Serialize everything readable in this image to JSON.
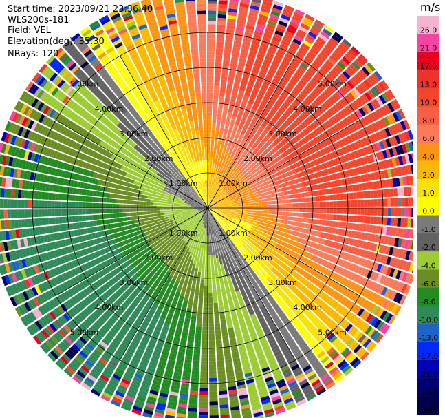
{
  "header": {
    "start_time": "Start time: 2023/09/21 23:36:40",
    "instrument": "WLS200s-181",
    "field": "Field: VEL",
    "elevation": "Elevation(deg): 35.30",
    "nrays": "NRays: 120"
  },
  "colorbar": {
    "unit": "m/s",
    "ticks": [
      "26.0",
      "21.0",
      "17.0",
      "13.0",
      "10.0",
      "8.0",
      "6.0",
      "4.0",
      "2.0",
      "1.0",
      "0.0",
      "-1.0",
      "-2.0",
      "-4.0",
      "-6.0",
      "-8.0",
      "-10.0",
      "-13.0",
      "-17.0",
      "-21.0",
      "-26.0",
      "-30.0"
    ],
    "colors": [
      "#f4b4cf",
      "#f545a0",
      "#e8001e",
      "#f0322a",
      "#f5462d",
      "#f85d45",
      "#fb7a5a",
      "#fb9313",
      "#fbb800",
      "#f7e200",
      "#ffff00",
      "#7a7a7a",
      "#626262",
      "#9ccc32",
      "#6b8e23",
      "#228b22",
      "#2e8b57",
      "#1e64c8",
      "#0028ff",
      "#0000b4",
      "#00006e",
      "#000046"
    ]
  },
  "chart_data": {
    "type": "ppi",
    "field": "VEL",
    "unit": "m/s",
    "nrays": 120,
    "elevation_deg": 35.3,
    "range_rings_km": [
      1.0,
      2.0,
      3.0,
      4.0,
      5.0
    ],
    "ring_labels": [
      "1.00km",
      "2.00km",
      "3.00km",
      "4.00km",
      "5.00km"
    ],
    "max_range_km": 6.2,
    "spokes_deg": [
      0,
      30,
      60,
      90,
      120,
      150,
      180,
      210,
      240,
      270,
      300,
      330
    ],
    "velocity_pattern": {
      "receding_max_mps": 13.0,
      "approaching_max_mps": -10.0,
      "receding_direction_deg": 55,
      "near_zero_band_km": [
        0.8,
        1.4
      ]
    }
  }
}
